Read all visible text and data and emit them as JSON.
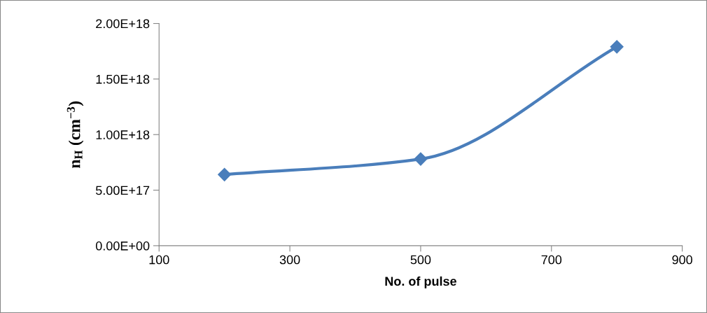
{
  "chart_data": {
    "type": "line",
    "xlabel": "No. of pulse",
    "ylabel": "n$_{H}$ (cm$^{−3}$)",
    "x": [
      200,
      500,
      800
    ],
    "series": [
      {
        "color": "#4a7ebb",
        "values": [
          6.4e+17,
          7.8e+17,
          1.79e+18
        ]
      }
    ],
    "xlim": [
      100,
      900
    ],
    "xticks": [
      100,
      300,
      500,
      700,
      900
    ],
    "ylim": [
      0,
      2e+18
    ],
    "yticks": [
      {
        "value": 0,
        "label": "0.00E+00"
      },
      {
        "value": 5e+17,
        "label": "5.00E+17"
      },
      {
        "value": 1e+18,
        "label": "1.00E+18"
      },
      {
        "value": 1.5e+18,
        "label": "1.50E+18"
      },
      {
        "value": 2e+18,
        "label": "2.00E+18"
      }
    ],
    "marker": "diamond",
    "line_style": "solid",
    "grid": false,
    "legend": false
  }
}
